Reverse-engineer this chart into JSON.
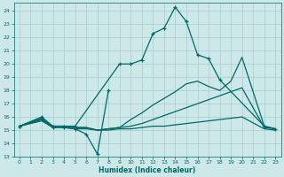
{
  "bg_color": "#cce8e8",
  "line_color": "#006868",
  "grid_color": "#aacccc",
  "xlabel": "Humidex (Indice chaleur)",
  "xlim": [
    -0.5,
    23.5
  ],
  "ylim": [
    13,
    24.6
  ],
  "yticks": [
    13,
    14,
    15,
    16,
    17,
    18,
    19,
    20,
    21,
    22,
    23,
    24
  ],
  "xticks": [
    0,
    1,
    2,
    3,
    4,
    5,
    6,
    7,
    8,
    9,
    10,
    11,
    12,
    13,
    14,
    15,
    16,
    17,
    18,
    19,
    20,
    21,
    22,
    23
  ],
  "curve1_x": [
    0,
    2,
    3,
    4,
    5,
    9,
    10,
    11,
    12,
    13,
    14,
    15,
    16,
    17,
    18,
    22,
    23
  ],
  "curve1_y": [
    15.3,
    16.0,
    15.3,
    15.3,
    15.3,
    20.0,
    20.0,
    20.3,
    22.3,
    22.7,
    24.3,
    23.2,
    20.7,
    20.4,
    18.8,
    15.3,
    15.1
  ],
  "curve2_x": [
    0,
    2,
    3,
    4,
    5,
    6,
    7,
    8
  ],
  "curve2_y": [
    15.3,
    15.9,
    15.2,
    15.2,
    15.1,
    14.7,
    13.2,
    18.0
  ],
  "curve3_x": [
    0,
    2,
    3,
    4,
    5,
    6,
    7,
    8,
    9,
    10,
    11,
    12,
    13,
    14,
    15,
    16,
    17,
    18,
    19,
    20,
    22,
    23
  ],
  "curve3_y": [
    15.3,
    15.8,
    15.3,
    15.3,
    15.2,
    15.2,
    15.0,
    15.1,
    15.2,
    15.3,
    15.5,
    15.8,
    16.1,
    16.4,
    16.7,
    17.0,
    17.3,
    17.6,
    17.9,
    18.2,
    15.2,
    15.1
  ],
  "curve4_x": [
    0,
    2,
    3,
    4,
    5,
    6,
    7,
    8,
    9,
    10,
    11,
    12,
    13,
    14,
    15,
    16,
    17,
    18,
    19,
    20,
    22,
    23
  ],
  "curve4_y": [
    15.3,
    15.7,
    15.2,
    15.2,
    15.1,
    15.1,
    15.0,
    15.0,
    15.1,
    15.1,
    15.2,
    15.3,
    15.3,
    15.4,
    15.5,
    15.6,
    15.7,
    15.8,
    15.9,
    16.0,
    15.1,
    15.0
  ],
  "curve5_x": [
    0,
    2,
    3,
    4,
    5,
    6,
    7,
    8,
    9,
    10,
    11,
    12,
    13,
    14,
    15,
    16,
    17,
    18,
    19,
    20,
    22,
    23
  ],
  "curve5_y": [
    15.3,
    15.8,
    15.3,
    15.3,
    15.2,
    15.2,
    15.0,
    15.1,
    15.2,
    15.8,
    16.3,
    16.9,
    17.4,
    17.9,
    18.5,
    18.7,
    18.3,
    18.0,
    18.7,
    20.5,
    15.3,
    15.1
  ]
}
